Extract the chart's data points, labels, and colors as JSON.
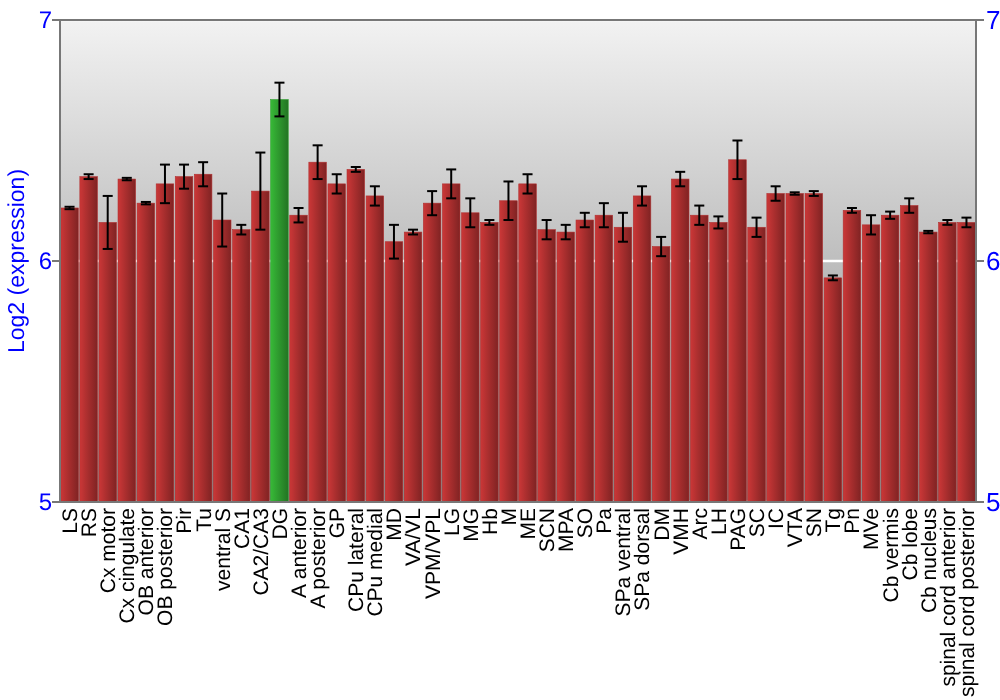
{
  "chart_data": {
    "type": "bar",
    "ylabel": "Log2 (expression)",
    "categories": [
      "LS",
      "RS",
      "Cx motor",
      "Cx cingulate",
      "OB anterior",
      "OB posterior",
      "Pir",
      "Tu",
      "ventral S",
      "CA1",
      "CA2/CA3",
      "DG",
      "A anterior",
      "A posterior",
      "GP",
      "CPu lateral",
      "CPu medial",
      "MD",
      "VA/VL",
      "VPM/VPL",
      "LG",
      "MG",
      "Hb",
      "M",
      "ME",
      "SCN",
      "MPA",
      "SO",
      "Pa",
      "SPa ventral",
      "SPa dorsal",
      "DM",
      "VMH",
      "Arc",
      "LH",
      "PAG",
      "SC",
      "IC",
      "VTA",
      "SN",
      "Tg",
      "Pn",
      "MVe",
      "Cb vermis",
      "Cb lobe",
      "Cb nucleus",
      "spinal cord anterior",
      "spinal cord posterior"
    ],
    "values": [
      6.22,
      6.35,
      6.16,
      6.34,
      6.24,
      6.32,
      6.35,
      6.36,
      6.17,
      6.13,
      6.29,
      6.67,
      6.19,
      6.41,
      6.32,
      6.38,
      6.27,
      6.08,
      6.12,
      6.24,
      6.32,
      6.2,
      6.16,
      6.25,
      6.32,
      6.13,
      6.12,
      6.17,
      6.19,
      6.14,
      6.27,
      6.06,
      6.34,
      6.19,
      6.16,
      6.42,
      6.14,
      6.28,
      6.28,
      6.28,
      5.93,
      6.21,
      6.15,
      6.19,
      6.23,
      6.12,
      6.16,
      6.16
    ],
    "errors": [
      0.005,
      0.01,
      0.11,
      0.005,
      0.005,
      0.08,
      0.05,
      0.05,
      0.11,
      0.02,
      0.16,
      0.07,
      0.03,
      0.07,
      0.04,
      0.01,
      0.04,
      0.07,
      0.01,
      0.05,
      0.06,
      0.06,
      0.01,
      0.08,
      0.04,
      0.04,
      0.03,
      0.03,
      0.05,
      0.06,
      0.04,
      0.04,
      0.03,
      0.04,
      0.025,
      0.08,
      0.04,
      0.03,
      0.005,
      0.01,
      0.01,
      0.01,
      0.04,
      0.015,
      0.03,
      0.005,
      0.01,
      0.02
    ],
    "colors": [
      "#b03030",
      "#b03030",
      "#b03030",
      "#b03030",
      "#b03030",
      "#b03030",
      "#b03030",
      "#b03030",
      "#b03030",
      "#b03030",
      "#b03030",
      "#30a030",
      "#b03030",
      "#b03030",
      "#b03030",
      "#b03030",
      "#b03030",
      "#b03030",
      "#b03030",
      "#b03030",
      "#b03030",
      "#b03030",
      "#b03030",
      "#b03030",
      "#b03030",
      "#b03030",
      "#b03030",
      "#b03030",
      "#b03030",
      "#b03030",
      "#b03030",
      "#b03030",
      "#b03030",
      "#b03030",
      "#b03030",
      "#b03030",
      "#b03030",
      "#b03030",
      "#b03030",
      "#b03030",
      "#b03030",
      "#b03030",
      "#b03030",
      "#b03030",
      "#b03030",
      "#b03030",
      "#b03030",
      "#b03030"
    ],
    "ylim": [
      5,
      7
    ],
    "yticks": [
      5,
      6,
      7
    ],
    "y2lim": [
      5,
      7
    ],
    "y2ticks": [
      5,
      6,
      7
    ],
    "grid": "y"
  }
}
